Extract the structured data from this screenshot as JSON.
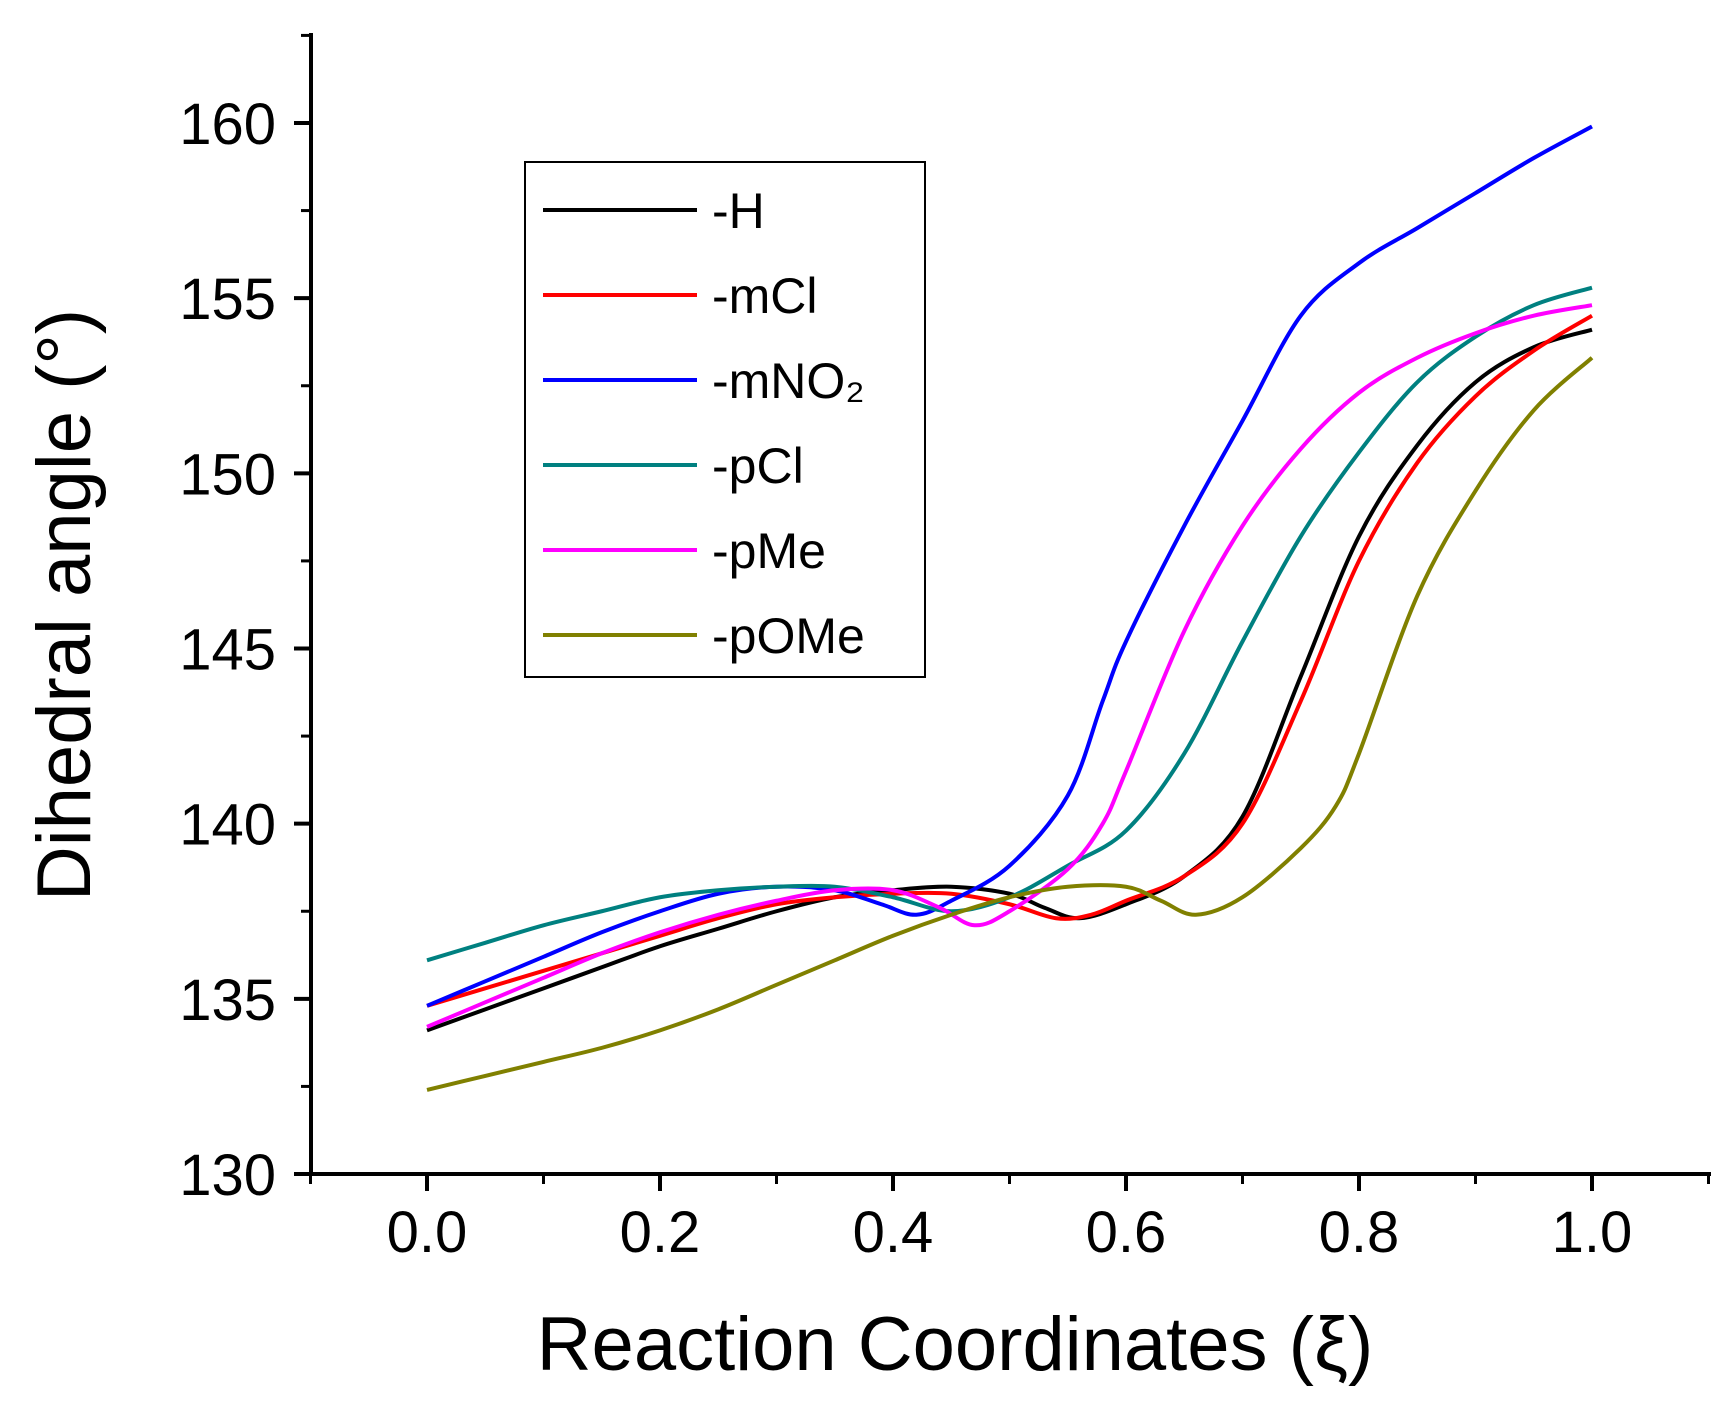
{
  "chart_data": {
    "type": "line",
    "title": "",
    "xlabel": "Reaction Coordinates (ξ)",
    "ylabel": "Dihedral angle (°)",
    "xlim": [
      -0.1,
      1.1
    ],
    "ylim": [
      130,
      163
    ],
    "xticks": [
      0.0,
      0.2,
      0.4,
      0.6,
      0.8,
      1.0
    ],
    "xtick_labels": [
      "0.0",
      "0.2",
      "0.4",
      "0.6",
      "0.8",
      "1.0"
    ],
    "xminor_ticks": [
      -0.1,
      0.1,
      0.3,
      0.5,
      0.7,
      0.9,
      1.1
    ],
    "yticks": [
      130,
      135,
      140,
      145,
      150,
      155,
      160
    ],
    "ytick_labels": [
      "130",
      "135",
      "140",
      "145",
      "150",
      "155",
      "160"
    ],
    "yminor_ticks": [
      132.5,
      137.5,
      142.5,
      147.5,
      152.5,
      157.5,
      162.5
    ],
    "grid": false,
    "legend_position": "top-left",
    "series": [
      {
        "name": "-H",
        "color": "#000000",
        "x": [
          0.0,
          0.05,
          0.1,
          0.15,
          0.2,
          0.25,
          0.3,
          0.35,
          0.4,
          0.45,
          0.5,
          0.53,
          0.56,
          0.6,
          0.65,
          0.7,
          0.75,
          0.8,
          0.85,
          0.9,
          0.95,
          1.0
        ],
        "y": [
          134.1,
          134.7,
          135.3,
          135.9,
          136.5,
          137.0,
          137.5,
          137.9,
          138.1,
          138.2,
          138.0,
          137.6,
          137.3,
          137.7,
          138.5,
          140.2,
          144.2,
          148.2,
          150.8,
          152.6,
          153.6,
          154.1
        ]
      },
      {
        "name": "-mCl",
        "color": "#ff0000",
        "x": [
          0.0,
          0.05,
          0.1,
          0.15,
          0.2,
          0.25,
          0.3,
          0.35,
          0.4,
          0.45,
          0.5,
          0.54,
          0.57,
          0.6,
          0.65,
          0.7,
          0.75,
          0.8,
          0.85,
          0.9,
          0.95,
          1.0
        ],
        "y": [
          134.8,
          135.3,
          135.8,
          136.3,
          136.8,
          137.3,
          137.7,
          137.9,
          138.0,
          138.0,
          137.7,
          137.3,
          137.4,
          137.8,
          138.5,
          140.0,
          143.5,
          147.5,
          150.3,
          152.2,
          153.5,
          154.5
        ]
      },
      {
        "name": "-mNO₂",
        "color": "#0000ff",
        "x": [
          0.0,
          0.05,
          0.1,
          0.15,
          0.2,
          0.25,
          0.3,
          0.35,
          0.39,
          0.42,
          0.45,
          0.5,
          0.55,
          0.58,
          0.6,
          0.65,
          0.7,
          0.75,
          0.8,
          0.85,
          0.9,
          0.95,
          1.0
        ],
        "y": [
          134.8,
          135.5,
          136.2,
          136.9,
          137.5,
          138.0,
          138.2,
          138.1,
          137.7,
          137.4,
          137.8,
          138.8,
          140.8,
          143.5,
          145.2,
          148.5,
          151.5,
          154.5,
          156.0,
          157.0,
          158.0,
          159.0,
          159.9
        ]
      },
      {
        "name": "-pCl",
        "color": "#008080",
        "x": [
          0.0,
          0.05,
          0.1,
          0.15,
          0.2,
          0.25,
          0.3,
          0.35,
          0.4,
          0.45,
          0.5,
          0.55,
          0.6,
          0.65,
          0.7,
          0.75,
          0.8,
          0.85,
          0.9,
          0.95,
          1.0
        ],
        "y": [
          136.1,
          136.6,
          137.1,
          137.5,
          137.9,
          138.1,
          138.2,
          138.2,
          137.9,
          137.5,
          137.9,
          138.8,
          139.8,
          142.0,
          145.2,
          148.2,
          150.6,
          152.6,
          153.9,
          154.8,
          155.3
        ]
      },
      {
        "name": "-pMe",
        "color": "#ff00ff",
        "x": [
          0.0,
          0.05,
          0.1,
          0.15,
          0.2,
          0.25,
          0.3,
          0.35,
          0.4,
          0.44,
          0.47,
          0.5,
          0.55,
          0.58,
          0.6,
          0.65,
          0.7,
          0.75,
          0.8,
          0.85,
          0.9,
          0.95,
          1.0
        ],
        "y": [
          134.2,
          134.9,
          135.6,
          136.3,
          136.9,
          137.4,
          137.8,
          138.1,
          138.1,
          137.6,
          137.1,
          137.5,
          138.7,
          140.0,
          141.5,
          145.5,
          148.5,
          150.7,
          152.3,
          153.3,
          154.0,
          154.5,
          154.8
        ]
      },
      {
        "name": "-pOMe",
        "color": "#808000",
        "x": [
          0.0,
          0.05,
          0.1,
          0.15,
          0.2,
          0.25,
          0.3,
          0.35,
          0.4,
          0.45,
          0.5,
          0.55,
          0.6,
          0.63,
          0.66,
          0.7,
          0.75,
          0.78,
          0.8,
          0.85,
          0.9,
          0.95,
          1.0
        ],
        "y": [
          132.4,
          132.8,
          133.2,
          133.6,
          134.1,
          134.7,
          135.4,
          136.1,
          136.8,
          137.4,
          137.9,
          138.2,
          138.2,
          137.8,
          137.4,
          137.9,
          139.3,
          140.5,
          142.0,
          146.5,
          149.5,
          151.8,
          153.3
        ]
      }
    ]
  }
}
